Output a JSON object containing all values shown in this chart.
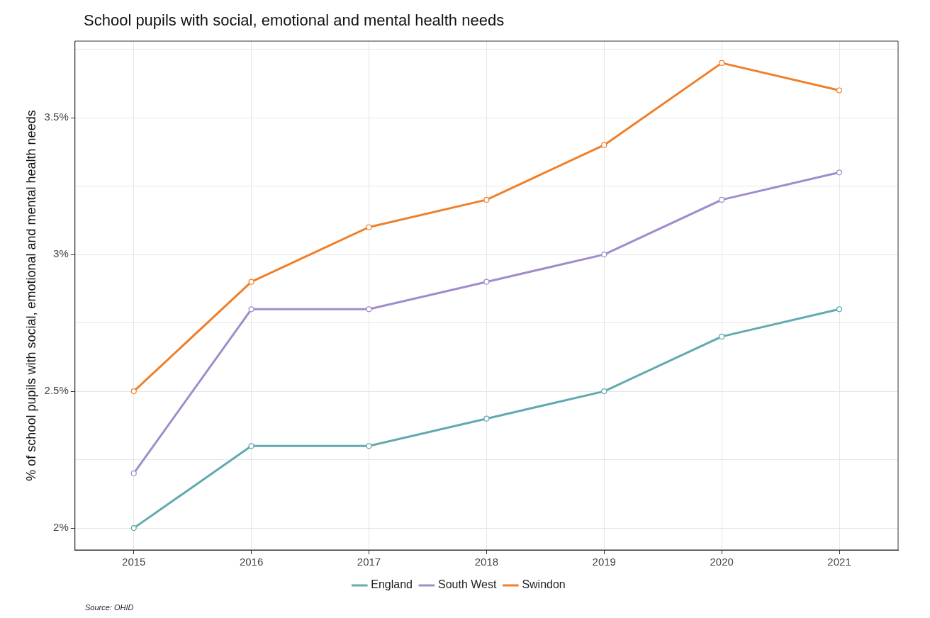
{
  "chart_data": {
    "type": "line",
    "title": "School pupils with social, emotional and mental health needs",
    "ylabel": "% of school pupils with social, emotional and mental health needs",
    "categories": [
      "2015",
      "2016",
      "2017",
      "2018",
      "2019",
      "2020",
      "2021"
    ],
    "series": [
      {
        "name": "England",
        "color": "#62aab0",
        "values": [
          2.0,
          2.3,
          2.3,
          2.4,
          2.5,
          2.7,
          2.8
        ]
      },
      {
        "name": "South West",
        "color": "#a08ccc",
        "values": [
          2.2,
          2.8,
          2.8,
          2.9,
          3.0,
          3.2,
          3.3
        ]
      },
      {
        "name": "Swindon",
        "color": "#f07f2a",
        "values": [
          2.5,
          2.9,
          3.1,
          3.2,
          3.4,
          3.7,
          3.6
        ]
      }
    ],
    "ylim": [
      1.92,
      3.78
    ],
    "yticks": [
      {
        "value": 2,
        "label": "2%"
      },
      {
        "value": 2.25,
        "label": null
      },
      {
        "value": 2.5,
        "label": "2.5%"
      },
      {
        "value": 2.75,
        "label": null
      },
      {
        "value": 3,
        "label": "3%"
      },
      {
        "value": 3.25,
        "label": null
      },
      {
        "value": 3.5,
        "label": "3.5%"
      },
      {
        "value": 3.75,
        "label": null
      }
    ],
    "grid": true,
    "legend": "bottom",
    "marker": "circle",
    "line_style": "solid",
    "annotations": [
      "Source: OHID"
    ]
  }
}
